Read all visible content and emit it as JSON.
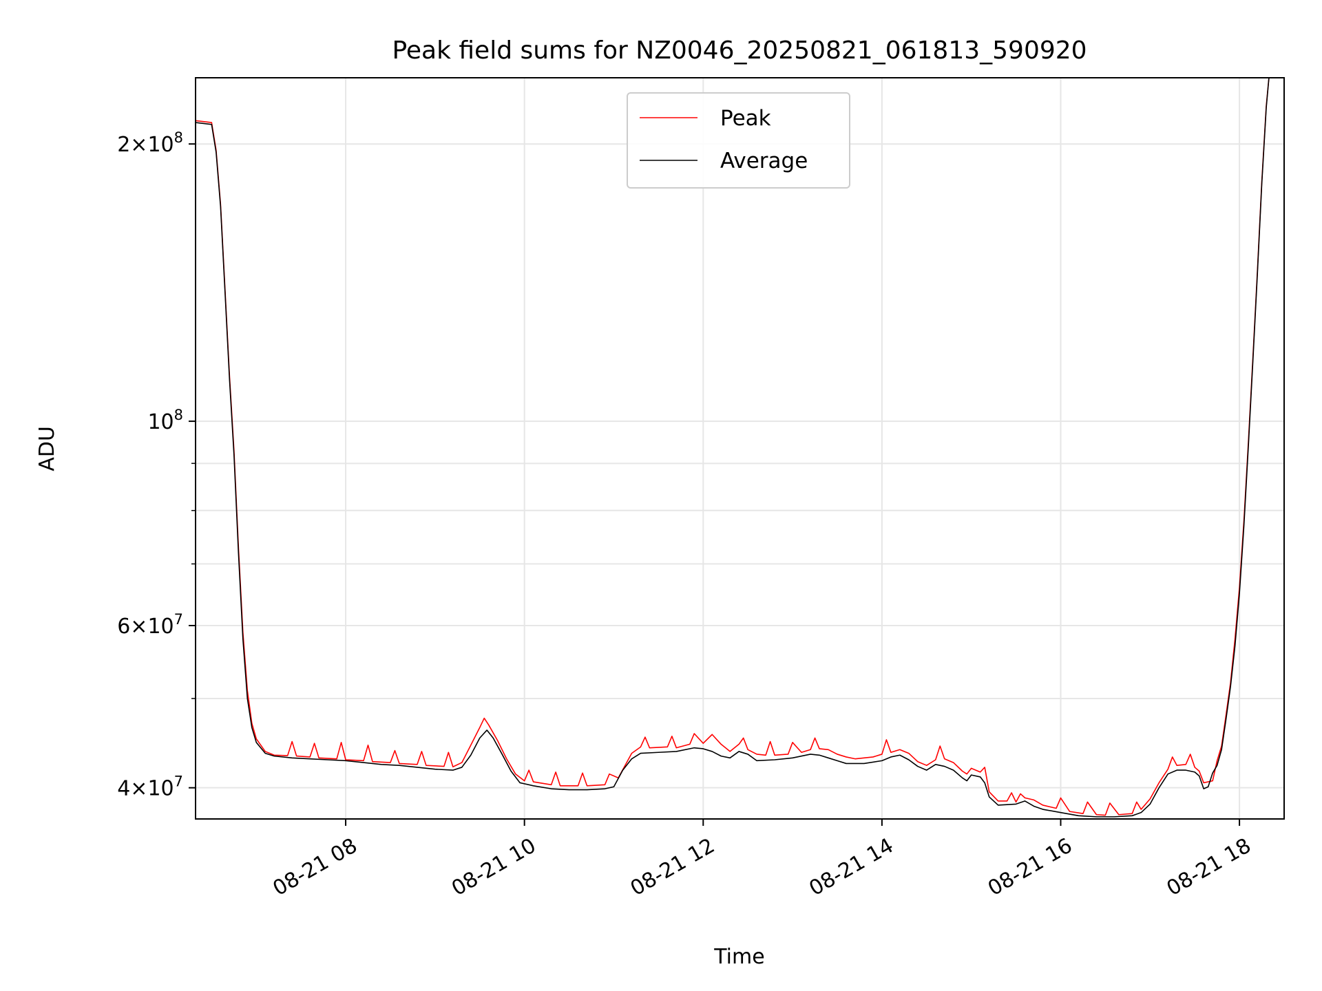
{
  "chart_data": {
    "type": "line",
    "title": "Peak field sums for NZ0046_20250821_061813_590920",
    "xlabel": "Time",
    "ylabel": "ADU",
    "x_unit": "hours of day on 2025-08-21",
    "xlim": [
      6.32,
      18.5
    ],
    "ylim": [
      37000000,
      236000000
    ],
    "yscale": "log",
    "grid": true,
    "legend_position": "upper center",
    "x_ticks": [
      {
        "value": 8,
        "label": "08-21 08"
      },
      {
        "value": 10,
        "label": "08-21 10"
      },
      {
        "value": 12,
        "label": "08-21 12"
      },
      {
        "value": 14,
        "label": "08-21 14"
      },
      {
        "value": 16,
        "label": "08-21 16"
      },
      {
        "value": 18,
        "label": "08-21 18"
      }
    ],
    "y_ticks": [
      {
        "value": 40000000,
        "mantissa": "4",
        "exponent": "7"
      },
      {
        "value": 60000000,
        "mantissa": "6",
        "exponent": "7"
      },
      {
        "value": 100000000,
        "mantissa": "",
        "exponent": "8"
      },
      {
        "value": 200000000,
        "mantissa": "2",
        "exponent": "8"
      }
    ],
    "y_minor_ticks": [
      50000000,
      70000000,
      80000000,
      90000000
    ],
    "series": [
      {
        "name": "Peak",
        "color": "#ff0000",
        "points": [
          [
            6.32,
            212000000
          ],
          [
            6.5,
            211000000
          ],
          [
            6.55,
            197000000
          ],
          [
            6.6,
            172000000
          ],
          [
            6.65,
            139000000
          ],
          [
            6.7,
            112000000
          ],
          [
            6.75,
            93000000
          ],
          [
            6.8,
            73000000
          ],
          [
            6.85,
            59000000
          ],
          [
            6.9,
            51000000
          ],
          [
            6.95,
            47000000
          ],
          [
            7.0,
            45200000
          ],
          [
            7.1,
            43800000
          ],
          [
            7.2,
            43400000
          ],
          [
            7.35,
            43350000
          ],
          [
            7.4,
            44900000
          ],
          [
            7.45,
            43300000
          ],
          [
            7.6,
            43200000
          ],
          [
            7.65,
            44700000
          ],
          [
            7.7,
            43100000
          ],
          [
            7.9,
            43000000
          ],
          [
            7.95,
            44800000
          ],
          [
            8.0,
            42900000
          ],
          [
            8.2,
            42800000
          ],
          [
            8.25,
            44500000
          ],
          [
            8.3,
            42700000
          ],
          [
            8.5,
            42600000
          ],
          [
            8.55,
            43900000
          ],
          [
            8.6,
            42500000
          ],
          [
            8.8,
            42400000
          ],
          [
            8.85,
            43800000
          ],
          [
            8.9,
            42300000
          ],
          [
            9.1,
            42200000
          ],
          [
            9.15,
            43700000
          ],
          [
            9.2,
            42150000
          ],
          [
            9.3,
            42600000
          ],
          [
            9.4,
            44500000
          ],
          [
            9.5,
            46500000
          ],
          [
            9.55,
            47600000
          ],
          [
            9.6,
            46800000
          ],
          [
            9.7,
            45000000
          ],
          [
            9.8,
            43000000
          ],
          [
            9.9,
            41400000
          ],
          [
            10.0,
            40700000
          ],
          [
            10.05,
            41800000
          ],
          [
            10.1,
            40600000
          ],
          [
            10.3,
            40300000
          ],
          [
            10.35,
            41600000
          ],
          [
            10.4,
            40200000
          ],
          [
            10.6,
            40200000
          ],
          [
            10.65,
            41500000
          ],
          [
            10.7,
            40200000
          ],
          [
            10.9,
            40300000
          ],
          [
            10.95,
            41400000
          ],
          [
            11.05,
            41000000
          ],
          [
            11.2,
            43600000
          ],
          [
            11.3,
            44300000
          ],
          [
            11.35,
            45400000
          ],
          [
            11.4,
            44200000
          ],
          [
            11.6,
            44300000
          ],
          [
            11.65,
            45500000
          ],
          [
            11.7,
            44200000
          ],
          [
            11.85,
            44600000
          ],
          [
            11.9,
            45800000
          ],
          [
            12.0,
            44700000
          ],
          [
            12.1,
            45700000
          ],
          [
            12.2,
            44600000
          ],
          [
            12.3,
            43800000
          ],
          [
            12.4,
            44600000
          ],
          [
            12.45,
            45300000
          ],
          [
            12.5,
            44000000
          ],
          [
            12.6,
            43500000
          ],
          [
            12.7,
            43400000
          ],
          [
            12.75,
            44900000
          ],
          [
            12.8,
            43400000
          ],
          [
            12.95,
            43500000
          ],
          [
            13.0,
            44800000
          ],
          [
            13.1,
            43700000
          ],
          [
            13.2,
            44000000
          ],
          [
            13.25,
            45300000
          ],
          [
            13.3,
            44100000
          ],
          [
            13.4,
            44000000
          ],
          [
            13.5,
            43500000
          ],
          [
            13.6,
            43200000
          ],
          [
            13.7,
            43000000
          ],
          [
            13.9,
            43200000
          ],
          [
            14.0,
            43500000
          ],
          [
            14.05,
            45100000
          ],
          [
            14.1,
            43700000
          ],
          [
            14.2,
            44000000
          ],
          [
            14.3,
            43600000
          ],
          [
            14.4,
            42700000
          ],
          [
            14.5,
            42300000
          ],
          [
            14.6,
            42900000
          ],
          [
            14.65,
            44400000
          ],
          [
            14.7,
            43000000
          ],
          [
            14.8,
            42600000
          ],
          [
            14.9,
            41700000
          ],
          [
            14.95,
            41400000
          ],
          [
            15.0,
            42000000
          ],
          [
            15.1,
            41600000
          ],
          [
            15.15,
            42100000
          ],
          [
            15.2,
            39600000
          ],
          [
            15.3,
            38700000
          ],
          [
            15.4,
            38700000
          ],
          [
            15.45,
            39500000
          ],
          [
            15.5,
            38600000
          ],
          [
            15.55,
            39400000
          ],
          [
            15.6,
            39000000
          ],
          [
            15.7,
            38800000
          ],
          [
            15.8,
            38300000
          ],
          [
            15.95,
            38000000
          ],
          [
            16.0,
            39000000
          ],
          [
            16.1,
            37700000
          ],
          [
            16.25,
            37500000
          ],
          [
            16.3,
            38600000
          ],
          [
            16.4,
            37400000
          ],
          [
            16.5,
            37350000
          ],
          [
            16.55,
            38500000
          ],
          [
            16.65,
            37400000
          ],
          [
            16.8,
            37500000
          ],
          [
            16.85,
            38600000
          ],
          [
            16.9,
            37900000
          ],
          [
            17.0,
            38900000
          ],
          [
            17.1,
            40500000
          ],
          [
            17.2,
            41900000
          ],
          [
            17.25,
            43200000
          ],
          [
            17.3,
            42300000
          ],
          [
            17.4,
            42400000
          ],
          [
            17.45,
            43500000
          ],
          [
            17.5,
            42100000
          ],
          [
            17.55,
            41700000
          ],
          [
            17.6,
            40500000
          ],
          [
            17.7,
            40700000
          ],
          [
            17.75,
            42800000
          ],
          [
            17.8,
            44400000
          ],
          [
            17.85,
            48000000
          ],
          [
            17.9,
            52000000
          ],
          [
            17.95,
            58000000
          ],
          [
            18.0,
            66000000
          ],
          [
            18.05,
            78000000
          ],
          [
            18.1,
            95000000
          ],
          [
            18.15,
            117000000
          ],
          [
            18.2,
            145000000
          ],
          [
            18.25,
            182000000
          ],
          [
            18.3,
            220000000
          ],
          [
            18.33,
            236000000
          ]
        ]
      },
      {
        "name": "Average",
        "color": "#000000",
        "points": [
          [
            6.32,
            211000000
          ],
          [
            6.5,
            210000000
          ],
          [
            6.55,
            196000000
          ],
          [
            6.6,
            171000000
          ],
          [
            6.65,
            138000000
          ],
          [
            6.7,
            111000000
          ],
          [
            6.75,
            92000000
          ],
          [
            6.8,
            72000000
          ],
          [
            6.85,
            58000000
          ],
          [
            6.9,
            50000000
          ],
          [
            6.95,
            46500000
          ],
          [
            7.0,
            44800000
          ],
          [
            7.1,
            43600000
          ],
          [
            7.2,
            43300000
          ],
          [
            7.4,
            43100000
          ],
          [
            7.6,
            43000000
          ],
          [
            7.8,
            42900000
          ],
          [
            8.0,
            42800000
          ],
          [
            8.2,
            42600000
          ],
          [
            8.4,
            42400000
          ],
          [
            8.6,
            42300000
          ],
          [
            8.8,
            42100000
          ],
          [
            9.0,
            41900000
          ],
          [
            9.2,
            41800000
          ],
          [
            9.3,
            42100000
          ],
          [
            9.4,
            43400000
          ],
          [
            9.5,
            45300000
          ],
          [
            9.58,
            46200000
          ],
          [
            9.65,
            45300000
          ],
          [
            9.75,
            43500000
          ],
          [
            9.85,
            41700000
          ],
          [
            9.95,
            40500000
          ],
          [
            10.1,
            40200000
          ],
          [
            10.3,
            39900000
          ],
          [
            10.5,
            39800000
          ],
          [
            10.7,
            39800000
          ],
          [
            10.9,
            39900000
          ],
          [
            11.0,
            40100000
          ],
          [
            11.1,
            41800000
          ],
          [
            11.2,
            43000000
          ],
          [
            11.3,
            43600000
          ],
          [
            11.5,
            43700000
          ],
          [
            11.7,
            43800000
          ],
          [
            11.9,
            44200000
          ],
          [
            12.0,
            44100000
          ],
          [
            12.1,
            43800000
          ],
          [
            12.2,
            43300000
          ],
          [
            12.3,
            43100000
          ],
          [
            12.4,
            43800000
          ],
          [
            12.5,
            43500000
          ],
          [
            12.6,
            42800000
          ],
          [
            12.8,
            42900000
          ],
          [
            13.0,
            43100000
          ],
          [
            13.2,
            43500000
          ],
          [
            13.3,
            43400000
          ],
          [
            13.4,
            43100000
          ],
          [
            13.5,
            42800000
          ],
          [
            13.6,
            42500000
          ],
          [
            13.8,
            42500000
          ],
          [
            14.0,
            42800000
          ],
          [
            14.1,
            43200000
          ],
          [
            14.2,
            43400000
          ],
          [
            14.3,
            42900000
          ],
          [
            14.4,
            42200000
          ],
          [
            14.5,
            41800000
          ],
          [
            14.6,
            42400000
          ],
          [
            14.7,
            42200000
          ],
          [
            14.8,
            41800000
          ],
          [
            14.9,
            41000000
          ],
          [
            14.95,
            40700000
          ],
          [
            15.0,
            41300000
          ],
          [
            15.1,
            41100000
          ],
          [
            15.15,
            40500000
          ],
          [
            15.2,
            39100000
          ],
          [
            15.3,
            38300000
          ],
          [
            15.5,
            38400000
          ],
          [
            15.6,
            38700000
          ],
          [
            15.7,
            38200000
          ],
          [
            15.8,
            37900000
          ],
          [
            16.0,
            37600000
          ],
          [
            16.2,
            37300000
          ],
          [
            16.4,
            37200000
          ],
          [
            16.6,
            37200000
          ],
          [
            16.8,
            37300000
          ],
          [
            16.9,
            37600000
          ],
          [
            17.0,
            38400000
          ],
          [
            17.1,
            40000000
          ],
          [
            17.2,
            41400000
          ],
          [
            17.3,
            41800000
          ],
          [
            17.4,
            41800000
          ],
          [
            17.5,
            41600000
          ],
          [
            17.55,
            41200000
          ],
          [
            17.6,
            39900000
          ],
          [
            17.65,
            40100000
          ],
          [
            17.7,
            41500000
          ],
          [
            17.75,
            42300000
          ],
          [
            17.8,
            44000000
          ],
          [
            17.85,
            47500000
          ],
          [
            17.9,
            51500000
          ],
          [
            17.95,
            57000000
          ],
          [
            18.0,
            65000000
          ],
          [
            18.05,
            77000000
          ],
          [
            18.1,
            94000000
          ],
          [
            18.15,
            116000000
          ],
          [
            18.2,
            144000000
          ],
          [
            18.25,
            181000000
          ],
          [
            18.3,
            219000000
          ],
          [
            18.33,
            236000000
          ]
        ]
      }
    ]
  }
}
